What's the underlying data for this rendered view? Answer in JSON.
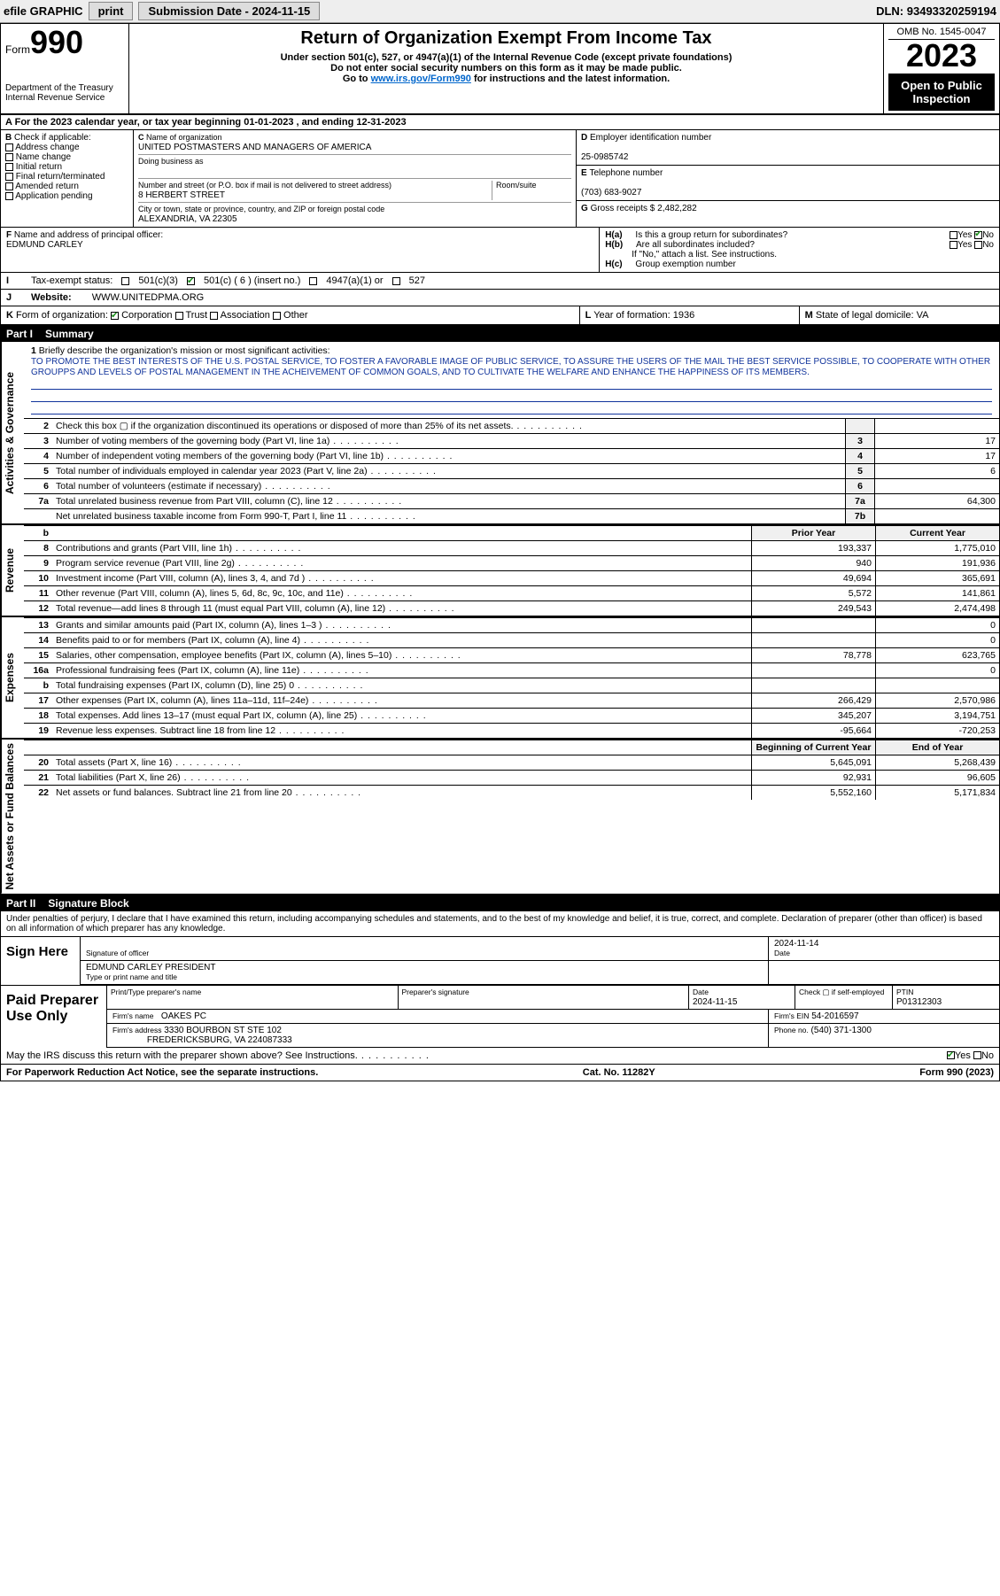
{
  "toolbar": {
    "efile": "efile GRAPHIC",
    "print": "print",
    "subdate_label": "Submission Date - ",
    "subdate": "2024-11-15",
    "dln_label": "DLN: ",
    "dln": "93493320259194"
  },
  "header": {
    "form_prefix": "Form",
    "form_no": "990",
    "dept1": "Department of the Treasury",
    "dept2": "Internal Revenue Service",
    "title": "Return of Organization Exempt From Income Tax",
    "sub1": "Under section 501(c), 527, or 4947(a)(1) of the Internal Revenue Code (except private foundations)",
    "sub2": "Do not enter social security numbers on this form as it may be made public.",
    "sub3": "Go to ",
    "sub3_link": "www.irs.gov/Form990",
    "sub3_tail": " for instructions and the latest information.",
    "omb": "OMB No. 1545-0047",
    "year": "2023",
    "inspect": "Open to Public Inspection"
  },
  "A": {
    "text": "For the 2023 calendar year, or tax year beginning 01-01-2023   , and ending 12-31-2023"
  },
  "B": {
    "label": "Check if applicable:",
    "opts": [
      "Address change",
      "Name change",
      "Initial return",
      "Final return/terminated",
      "Amended return",
      "Application pending"
    ]
  },
  "C": {
    "name_lbl": "Name of organization",
    "name": "UNITED POSTMASTERS AND MANAGERS OF AMERICA",
    "dba_lbl": "Doing business as",
    "dba": "",
    "street_lbl": "Number and street (or P.O. box if mail is not delivered to street address)",
    "room_lbl": "Room/suite",
    "street": "8 HERBERT STREET",
    "city_lbl": "City or town, state or province, country, and ZIP or foreign postal code",
    "city": "ALEXANDRIA, VA  22305"
  },
  "D": {
    "lbl": "Employer identification number",
    "val": "25-0985742"
  },
  "E": {
    "lbl": "Telephone number",
    "val": "(703) 683-9027"
  },
  "G": {
    "lbl": "Gross receipts $",
    "val": "2,482,282"
  },
  "F": {
    "lbl": "Name and address of principal officer:",
    "name": "EDMUND CARLEY"
  },
  "H": {
    "a_lbl": "Is this a group return for subordinates?",
    "a_yes": "Yes",
    "a_no": "No",
    "b_lbl": "Are all subordinates included?",
    "b_note": "If \"No,\" attach a list. See instructions.",
    "c_lbl": "Group exemption number"
  },
  "I": {
    "lbl": "Tax-exempt status:",
    "opts": [
      "501(c)(3)",
      "501(c) ( 6 ) (insert no.)",
      "4947(a)(1) or",
      "527"
    ],
    "checked_idx": 1
  },
  "J": {
    "lbl": "Website:",
    "val": "WWW.UNITEDPMA.ORG"
  },
  "K": {
    "lbl": "Form of organization:",
    "opts": [
      "Corporation",
      "Trust",
      "Association",
      "Other"
    ],
    "checked_idx": 0,
    "L_lbl": "Year of formation:",
    "L_val": "1936",
    "M_lbl": "State of legal domicile:",
    "M_val": "VA"
  },
  "part1": {
    "hdr": "Part I",
    "ttl": "Summary"
  },
  "part2": {
    "hdr": "Part II",
    "ttl": "Signature Block"
  },
  "mission": {
    "q": "Briefly describe the organization's mission or most significant activities:",
    "txt": "TO PROMOTE THE BEST INTERESTS OF THE U.S. POSTAL SERVICE, TO FOSTER A FAVORABLE IMAGE OF PUBLIC SERVICE, TO ASSURE THE USERS OF THE MAIL THE BEST SERVICE POSSIBLE, TO COOPERATE WITH OTHER GROUPPS AND LEVELS OF POSTAL MANAGEMENT IN THE ACHEIVEMENT OF COMMON GOALS, AND TO CULTIVATE THE WELFARE AND ENHANCE THE HAPPINESS OF ITS MEMBERS."
  },
  "gov_rows": [
    {
      "n": "2",
      "lab": "Check this box ▢ if the organization discontinued its operations or disposed of more than 25% of its net assets.",
      "cd": "",
      "val": ""
    },
    {
      "n": "3",
      "lab": "Number of voting members of the governing body (Part VI, line 1a)",
      "cd": "3",
      "val": "17"
    },
    {
      "n": "4",
      "lab": "Number of independent voting members of the governing body (Part VI, line 1b)",
      "cd": "4",
      "val": "17"
    },
    {
      "n": "5",
      "lab": "Total number of individuals employed in calendar year 2023 (Part V, line 2a)",
      "cd": "5",
      "val": "6"
    },
    {
      "n": "6",
      "lab": "Total number of volunteers (estimate if necessary)",
      "cd": "6",
      "val": ""
    },
    {
      "n": "7a",
      "lab": "Total unrelated business revenue from Part VIII, column (C), line 12",
      "cd": "7a",
      "val": "64,300"
    },
    {
      "n": "",
      "lab": "Net unrelated business taxable income from Form 990-T, Part I, line 11",
      "cd": "7b",
      "val": ""
    }
  ],
  "rev_hdr": {
    "c1": "Prior Year",
    "c2": "Current Year"
  },
  "rev_rows": [
    {
      "n": "8",
      "lab": "Contributions and grants (Part VIII, line 1h)",
      "c1": "193,337",
      "c2": "1,775,010"
    },
    {
      "n": "9",
      "lab": "Program service revenue (Part VIII, line 2g)",
      "c1": "940",
      "c2": "191,936"
    },
    {
      "n": "10",
      "lab": "Investment income (Part VIII, column (A), lines 3, 4, and 7d )",
      "c1": "49,694",
      "c2": "365,691"
    },
    {
      "n": "11",
      "lab": "Other revenue (Part VIII, column (A), lines 5, 6d, 8c, 9c, 10c, and 11e)",
      "c1": "5,572",
      "c2": "141,861"
    },
    {
      "n": "12",
      "lab": "Total revenue—add lines 8 through 11 (must equal Part VIII, column (A), line 12)",
      "c1": "249,543",
      "c2": "2,474,498"
    }
  ],
  "exp_rows": [
    {
      "n": "13",
      "lab": "Grants and similar amounts paid (Part IX, column (A), lines 1–3 )",
      "c1": "",
      "c2": "0"
    },
    {
      "n": "14",
      "lab": "Benefits paid to or for members (Part IX, column (A), line 4)",
      "c1": "",
      "c2": "0"
    },
    {
      "n": "15",
      "lab": "Salaries, other compensation, employee benefits (Part IX, column (A), lines 5–10)",
      "c1": "78,778",
      "c2": "623,765"
    },
    {
      "n": "16a",
      "lab": "Professional fundraising fees (Part IX, column (A), line 11e)",
      "c1": "",
      "c2": "0"
    },
    {
      "n": "b",
      "lab": "Total fundraising expenses (Part IX, column (D), line 25) 0",
      "c1": "",
      "c2": ""
    },
    {
      "n": "17",
      "lab": "Other expenses (Part IX, column (A), lines 11a–11d, 11f–24e)",
      "c1": "266,429",
      "c2": "2,570,986"
    },
    {
      "n": "18",
      "lab": "Total expenses. Add lines 13–17 (must equal Part IX, column (A), line 25)",
      "c1": "345,207",
      "c2": "3,194,751"
    },
    {
      "n": "19",
      "lab": "Revenue less expenses. Subtract line 18 from line 12",
      "c1": "-95,664",
      "c2": "-720,253"
    }
  ],
  "na_hdr": {
    "c1": "Beginning of Current Year",
    "c2": "End of Year"
  },
  "na_rows": [
    {
      "n": "20",
      "lab": "Total assets (Part X, line 16)",
      "c1": "5,645,091",
      "c2": "5,268,439"
    },
    {
      "n": "21",
      "lab": "Total liabilities (Part X, line 26)",
      "c1": "92,931",
      "c2": "96,605"
    },
    {
      "n": "22",
      "lab": "Net assets or fund balances. Subtract line 21 from line 20",
      "c1": "5,552,160",
      "c2": "5,171,834"
    }
  ],
  "side_labels": {
    "gov": "Activities & Governance",
    "rev": "Revenue",
    "exp": "Expenses",
    "na": "Net Assets or Fund Balances"
  },
  "perjury": "Under penalties of perjury, I declare that I have examined this return, including accompanying schedules and statements, and to the best of my knowledge and belief, it is true, correct, and complete. Declaration of preparer (other than officer) is based on all information of which preparer has any knowledge.",
  "sign": {
    "here": "Sign Here",
    "sig_lbl": "Signature of officer",
    "date_lbl": "Date",
    "date": "2024-11-14",
    "name": "EDMUND CARLEY PRESIDENT",
    "name_lbl": "Type or print name and title"
  },
  "prep": {
    "here": "Paid Preparer Use Only",
    "r1": {
      "c1": "Print/Type preparer's name",
      "c2": "Preparer's signature",
      "c3_lbl": "Date",
      "c3": "2024-11-15",
      "c4_lbl": "Check ▢ if self-employed",
      "c5_lbl": "PTIN",
      "c5": "P01312303"
    },
    "r2": {
      "firm_lbl": "Firm's name",
      "firm": "OAKES PC",
      "ein_lbl": "Firm's EIN",
      "ein": "54-2016597"
    },
    "r3": {
      "addr_lbl": "Firm's address",
      "addr": "3330 BOURBON ST STE 102",
      "city": "FREDERICKSBURG, VA  224087333",
      "ph_lbl": "Phone no.",
      "ph": "(540) 371-1300"
    }
  },
  "discuss": {
    "q": "May the IRS discuss this return with the preparer shown above? See Instructions.",
    "yes": "Yes",
    "no": "No"
  },
  "footer": {
    "pra": "For Paperwork Reduction Act Notice, see the separate instructions.",
    "cat": "Cat. No. 11282Y",
    "form": "Form 990 (2023)"
  },
  "colors": {
    "link": "#0645ad",
    "check_green": "#1a8f1a",
    "mission_blue": "#11349c"
  }
}
